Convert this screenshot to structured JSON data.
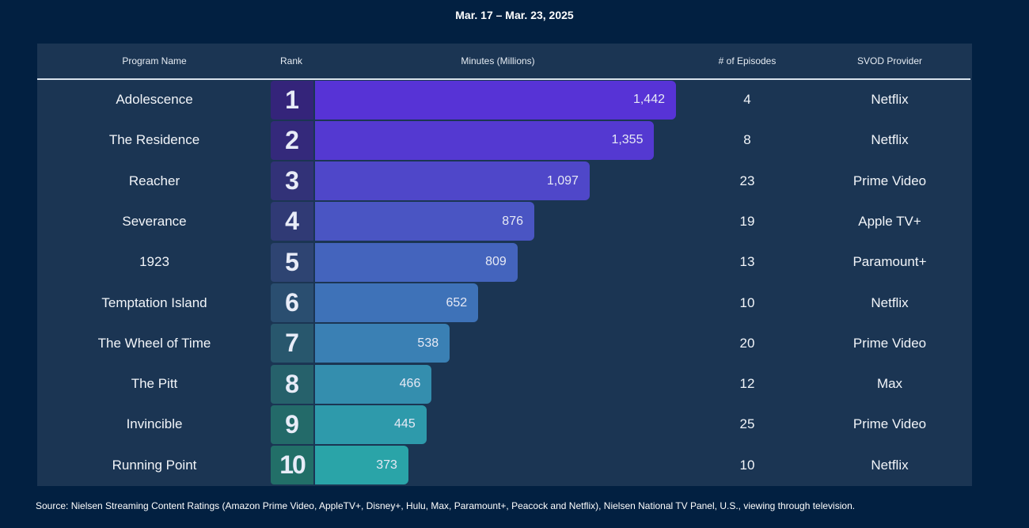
{
  "date_range": "Mar. 17 – Mar. 23, 2025",
  "headers": {
    "program": "Program Name",
    "rank": "Rank",
    "minutes": "Minutes (Millions)",
    "episodes": "# of Episodes",
    "provider": "SVOD Provider"
  },
  "chart_data": {
    "type": "bar",
    "orientation": "horizontal",
    "title": "Mar. 17 – Mar. 23, 2025",
    "xlabel": "Minutes (Millions)",
    "categories": [
      "Adolescence",
      "The Residence",
      "Reacher",
      "Severance",
      "1923",
      "Temptation Island",
      "The Wheel of Time",
      "The Pitt",
      "Invincible",
      "Running Point"
    ],
    "rows": [
      {
        "rank": 1,
        "program": "Adolescence",
        "minutes": 1442,
        "minutes_label": "1,442",
        "episodes": 4,
        "provider": "Netflix"
      },
      {
        "rank": 2,
        "program": "The Residence",
        "minutes": 1355,
        "minutes_label": "1,355",
        "episodes": 8,
        "provider": "Netflix"
      },
      {
        "rank": 3,
        "program": "Reacher",
        "minutes": 1097,
        "minutes_label": "1,097",
        "episodes": 23,
        "provider": "Prime Video"
      },
      {
        "rank": 4,
        "program": "Severance",
        "minutes": 876,
        "minutes_label": "876",
        "episodes": 19,
        "provider": "Apple TV+"
      },
      {
        "rank": 5,
        "program": "1923",
        "minutes": 809,
        "minutes_label": "809",
        "episodes": 13,
        "provider": "Paramount+"
      },
      {
        "rank": 6,
        "program": "Temptation Island",
        "minutes": 652,
        "minutes_label": "652",
        "episodes": 10,
        "provider": "Netflix"
      },
      {
        "rank": 7,
        "program": "The Wheel of Time",
        "minutes": 538,
        "minutes_label": "538",
        "episodes": 20,
        "provider": "Prime Video"
      },
      {
        "rank": 8,
        "program": "The Pitt",
        "minutes": 466,
        "minutes_label": "466",
        "episodes": 12,
        "provider": "Max"
      },
      {
        "rank": 9,
        "program": "Invincible",
        "minutes": 445,
        "minutes_label": "445",
        "episodes": 25,
        "provider": "Prime Video"
      },
      {
        "rank": 10,
        "program": "Running Point",
        "minutes": 373,
        "minutes_label": "373",
        "episodes": 10,
        "provider": "Netflix"
      }
    ],
    "bar_colors": [
      "#5733d6",
      "#5439d1",
      "#4f47c9",
      "#4a55c3",
      "#4464bd",
      "#3e72b8",
      "#3a80b4",
      "#348eae",
      "#2e9aab",
      "#2aa4a8"
    ],
    "rank_colors": [
      "#34247a",
      "#34297b",
      "#323278",
      "#303a75",
      "#2e4472",
      "#2a4e70",
      "#28576d",
      "#26616b",
      "#236a69",
      "#226f68"
    ],
    "xlim": [
      0,
      1442
    ]
  },
  "source": "Source: Nielsen Streaming Content Ratings (Amazon Prime Video, AppleTV+, Disney+, Hulu, Max, Paramount+, Peacock and Netflix), Nielsen National TV Panel, U.S., viewing through television."
}
